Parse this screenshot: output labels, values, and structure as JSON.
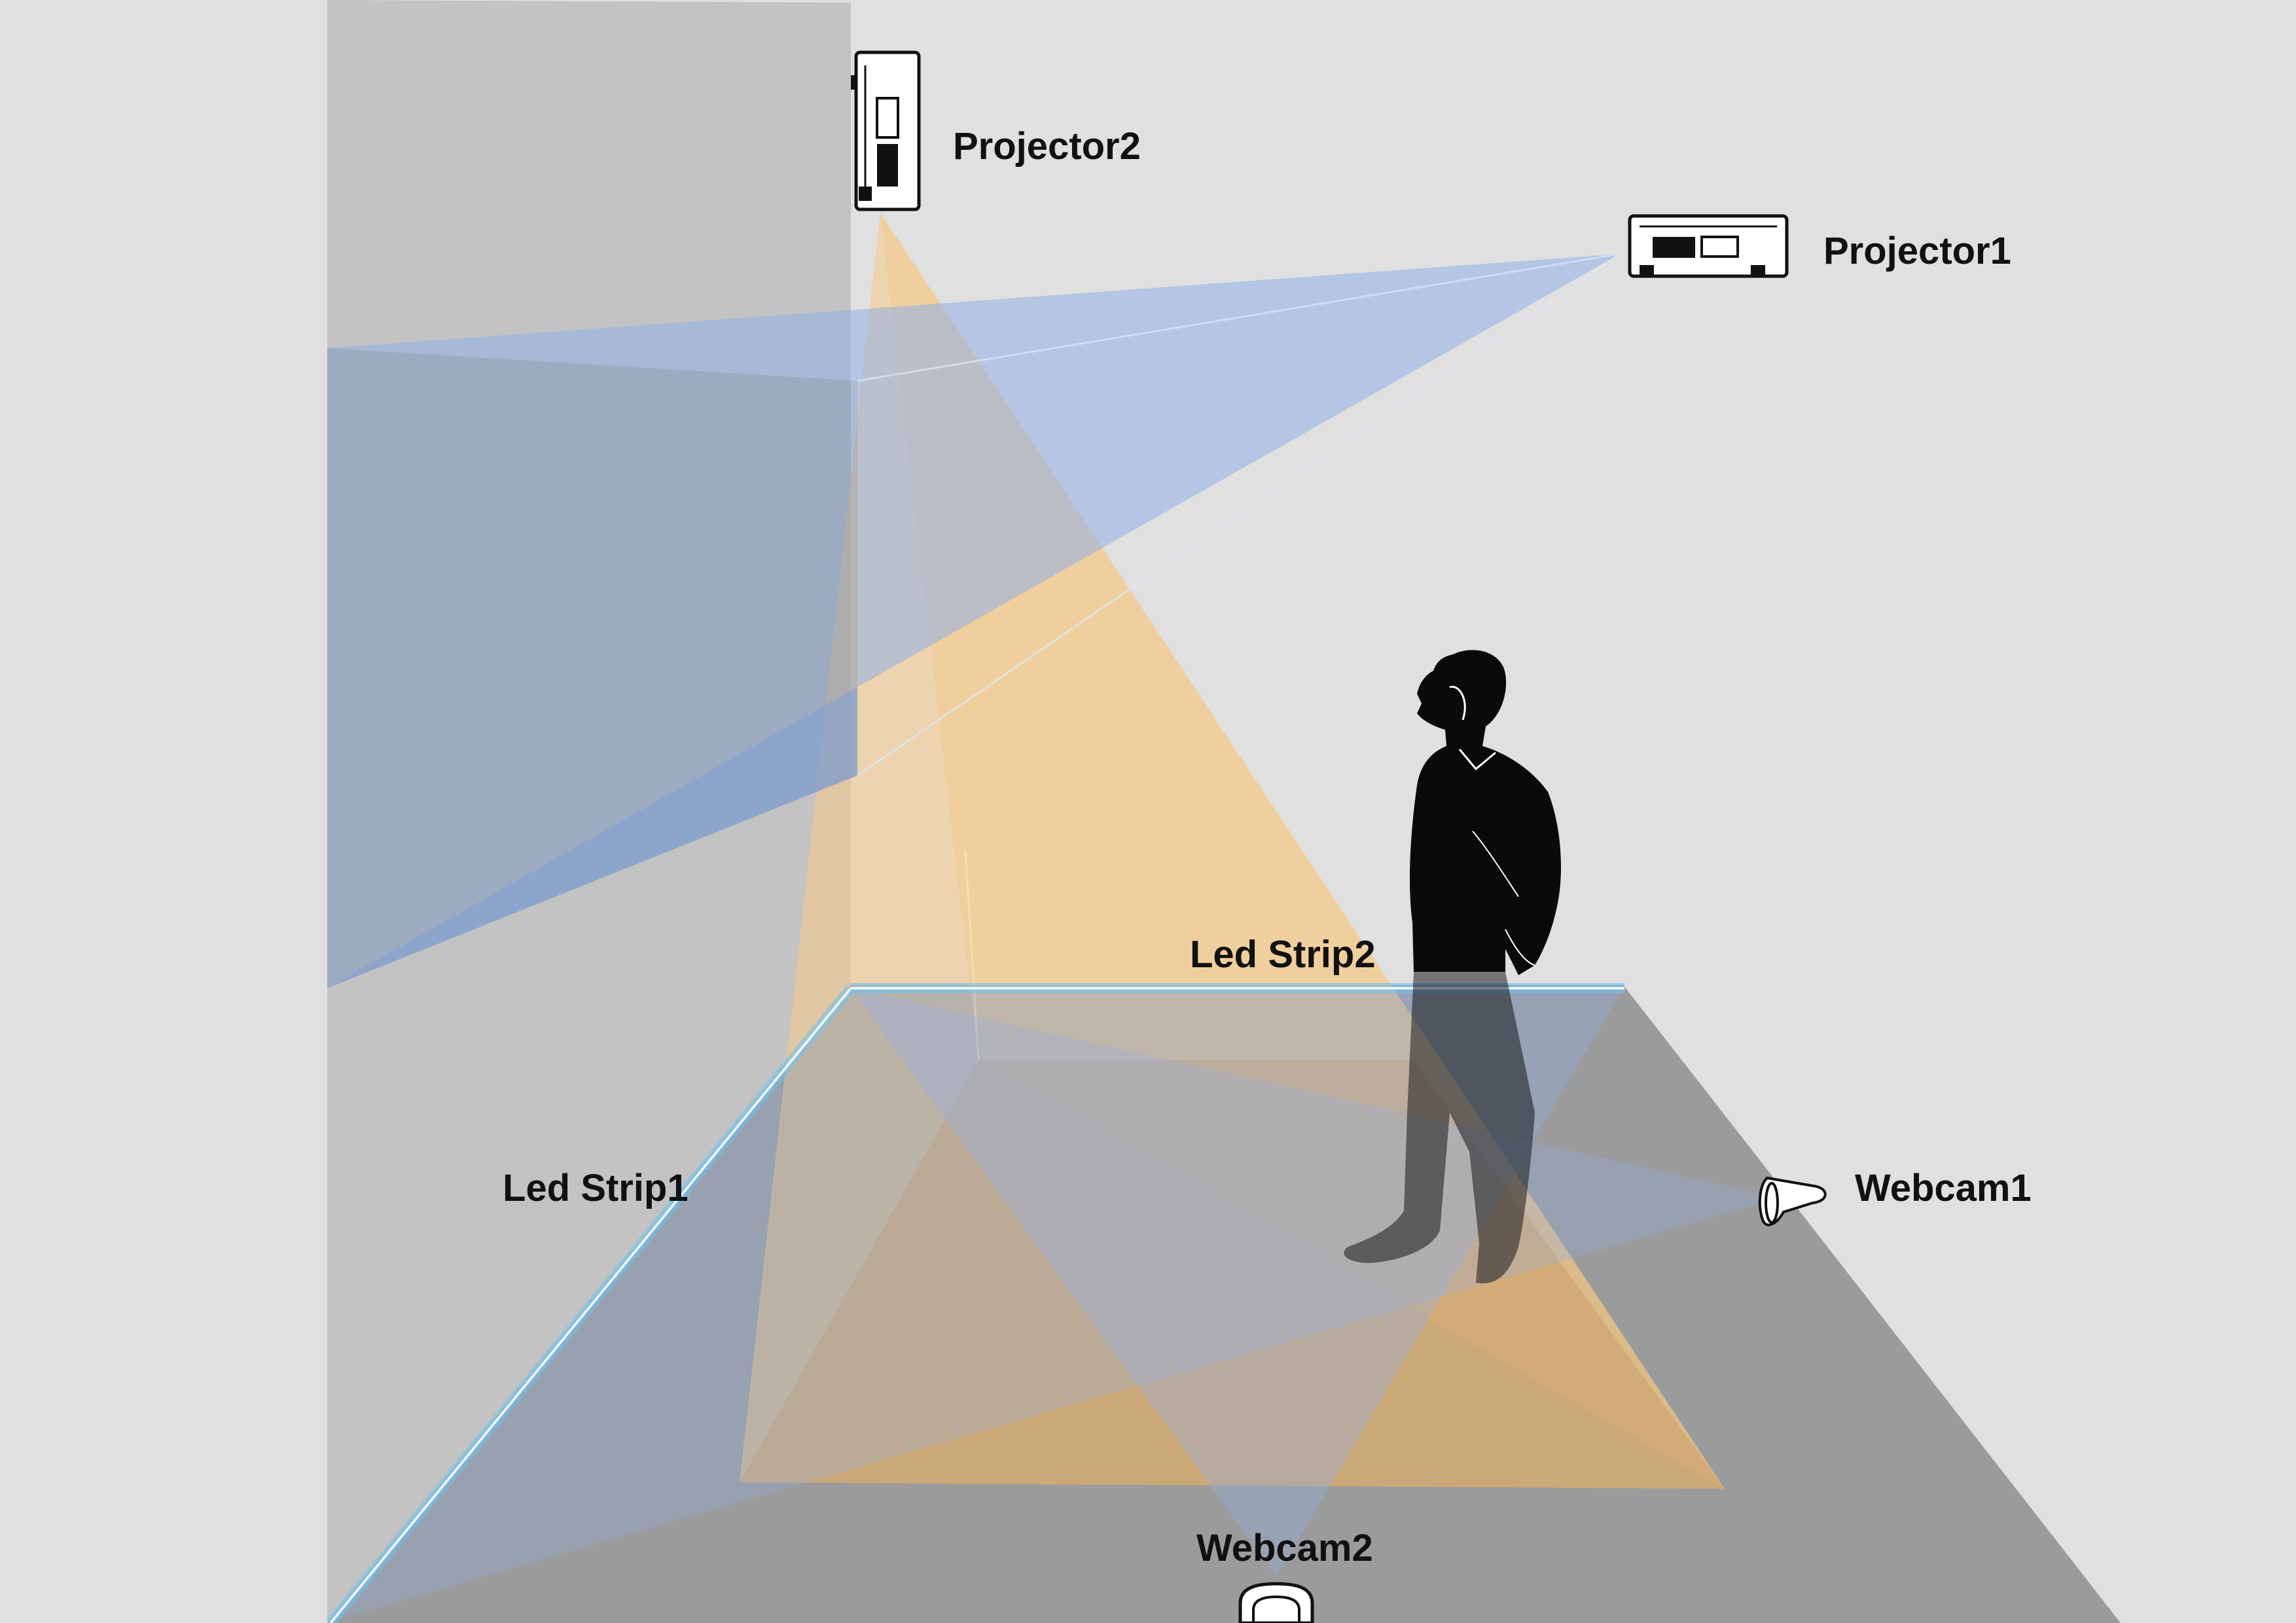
{
  "labels": {
    "projector1": "Projector1",
    "projector2": "Projector2",
    "led_strip1": "Led Strip1",
    "led_strip2": "Led Strip2",
    "webcam1": "Webcam1",
    "webcam2": "Webcam2"
  },
  "colors": {
    "background": "#e0e0e0",
    "wall": "#c3c3c3",
    "floor": "#9b9b9b",
    "projector1_beam": "#8fb0e6",
    "projector2_beam": "#f7c985",
    "led_strip": "#6ec3f0",
    "person": "#0a0a0a",
    "webcam_fov": "#8fb0e6"
  },
  "icons": {
    "projector1": "projector-icon",
    "projector2": "projector-icon",
    "webcam1": "webcam-icon",
    "webcam2": "webcam-icon",
    "person": "standing-person"
  }
}
